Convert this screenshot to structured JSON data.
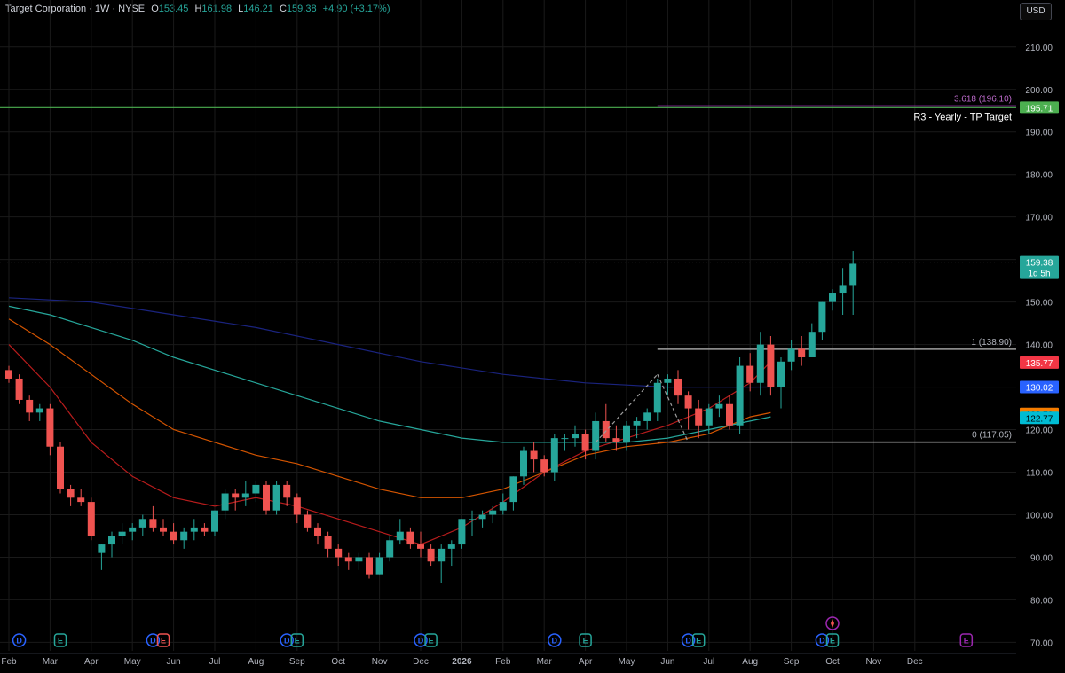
{
  "header": {
    "symbol": "Target Corporation · 1W · NYSE",
    "open_label": "O",
    "open": "153.45",
    "high_label": "H",
    "high": "161.98",
    "low_label": "L",
    "low": "146.21",
    "close_label": "C",
    "close": "159.38",
    "change": "+4.90 (+3.17%)"
  },
  "currency_button": "USD",
  "colors": {
    "up": "#26a69a",
    "down": "#ef5350",
    "background": "#000000",
    "grid": "#1a1a1a",
    "ma_fast": "#b71c1c",
    "ma_mid": "#d35400",
    "ma_slow": "#26a69a",
    "ma_long": "#1a237e"
  },
  "chart_data": {
    "type": "candlestick",
    "title": "Target Corporation · 1W · NYSE",
    "ylim": [
      68,
      216
    ],
    "y_ticks": [
      "70.00",
      "80.00",
      "90.00",
      "100.00",
      "110.00",
      "120.00",
      "130.00",
      "140.00",
      "150.00",
      "160.00",
      "170.00",
      "180.00",
      "190.00",
      "200.00",
      "210.00"
    ],
    "x_ticks": [
      "Feb",
      "Mar",
      "Apr",
      "May",
      "Jun",
      "Jul",
      "Aug",
      "Sep",
      "Oct",
      "Nov",
      "Dec",
      "2026",
      "Feb",
      "Mar",
      "Apr",
      "May",
      "Jun",
      "Jul",
      "Aug",
      "Sep",
      "Oct",
      "Nov",
      "Dec"
    ],
    "x_tick_weeks": [
      0,
      4,
      8,
      12,
      16,
      20,
      24,
      28,
      32,
      36,
      40,
      44,
      48,
      52,
      56,
      60,
      64,
      68,
      72,
      76,
      80,
      84,
      88
    ],
    "bold_tick": "2026",
    "candles": [
      [
        134,
        135,
        131,
        132
      ],
      [
        132,
        133,
        126,
        127
      ],
      [
        127,
        128,
        122,
        124
      ],
      [
        124,
        126,
        122,
        125
      ],
      [
        125,
        126,
        114,
        116
      ],
      [
        116,
        117,
        105,
        106
      ],
      [
        106,
        107,
        102,
        104
      ],
      [
        104,
        106,
        102,
        103
      ],
      [
        103,
        104,
        94,
        95
      ],
      [
        91,
        93,
        87,
        93
      ],
      [
        93,
        96,
        90,
        95
      ],
      [
        95,
        98,
        93,
        96
      ],
      [
        96,
        98,
        94,
        97
      ],
      [
        97,
        100,
        95,
        99
      ],
      [
        99,
        102,
        96,
        97
      ],
      [
        97,
        99,
        95,
        96
      ],
      [
        96,
        98,
        93,
        94
      ],
      [
        94,
        97,
        92,
        96
      ],
      [
        96,
        99,
        94,
        97
      ],
      [
        97,
        98,
        95,
        96
      ],
      [
        96,
        101,
        95,
        101
      ],
      [
        101,
        106,
        99,
        105
      ],
      [
        105,
        106,
        101,
        104
      ],
      [
        104,
        108,
        102,
        105
      ],
      [
        105,
        108,
        103,
        107
      ],
      [
        107,
        108,
        100,
        101
      ],
      [
        101,
        108,
        100,
        107
      ],
      [
        107,
        108,
        102,
        104
      ],
      [
        104,
        105,
        98,
        100
      ],
      [
        100,
        101,
        96,
        97
      ],
      [
        97,
        98,
        93,
        95
      ],
      [
        95,
        96,
        90,
        92
      ],
      [
        92,
        93,
        88,
        90
      ],
      [
        90,
        91,
        87,
        89
      ],
      [
        89,
        91,
        87,
        90
      ],
      [
        90,
        91,
        85,
        86
      ],
      [
        86,
        91,
        86,
        90
      ],
      [
        90,
        95,
        89,
        94
      ],
      [
        94,
        99,
        93,
        96
      ],
      [
        96,
        97,
        92,
        93
      ],
      [
        93,
        96,
        90,
        92
      ],
      [
        92,
        93,
        88,
        89
      ],
      [
        89,
        93,
        84,
        92
      ],
      [
        92,
        94,
        88,
        93
      ],
      [
        93,
        99,
        92,
        99
      ],
      [
        99,
        101,
        95,
        99
      ],
      [
        99,
        101,
        97,
        100
      ],
      [
        100,
        102,
        98,
        101
      ],
      [
        101,
        105,
        100,
        103
      ],
      [
        103,
        109,
        101,
        109
      ],
      [
        109,
        116,
        107,
        115
      ],
      [
        115,
        117,
        110,
        113
      ],
      [
        113,
        114,
        109,
        110
      ],
      [
        110,
        119,
        108,
        118
      ],
      [
        118,
        119,
        115,
        118
      ],
      [
        118,
        121,
        116,
        119
      ],
      [
        119,
        120,
        113,
        115
      ],
      [
        115,
        124,
        113,
        122
      ],
      [
        122,
        126,
        117,
        118
      ],
      [
        118,
        121,
        115,
        117
      ],
      [
        117,
        122,
        115,
        121
      ],
      [
        121,
        123,
        118,
        122
      ],
      [
        122,
        125,
        120,
        124
      ],
      [
        124,
        132,
        122,
        131
      ],
      [
        131,
        133,
        128,
        132
      ],
      [
        132,
        134,
        126,
        128
      ],
      [
        128,
        129,
        120,
        125
      ],
      [
        125,
        127,
        118,
        121
      ],
      [
        121,
        126,
        119,
        125
      ],
      [
        125,
        128,
        123,
        126
      ],
      [
        126,
        128,
        120,
        121
      ],
      [
        121,
        137,
        119,
        135
      ],
      [
        135,
        138,
        129,
        131
      ],
      [
        131,
        143,
        128,
        140
      ],
      [
        140,
        142,
        128,
        130
      ],
      [
        130,
        137,
        125,
        136
      ],
      [
        136,
        141,
        134,
        139
      ],
      [
        139,
        142,
        135,
        137
      ],
      [
        137,
        145,
        137,
        143
      ],
      [
        143,
        150,
        141,
        150
      ],
      [
        150,
        153,
        148,
        152
      ],
      [
        152,
        158,
        147,
        154
      ],
      [
        154,
        162,
        147,
        159
      ]
    ],
    "series": [
      {
        "values": [
          [
            0,
            140
          ],
          [
            4,
            130
          ],
          [
            8,
            117
          ],
          [
            12,
            109
          ],
          [
            16,
            104
          ],
          [
            20,
            102
          ],
          [
            24,
            104
          ],
          [
            28,
            102
          ],
          [
            32,
            99
          ],
          [
            36,
            96
          ],
          [
            40,
            93
          ],
          [
            44,
            97
          ],
          [
            48,
            103
          ],
          [
            52,
            110
          ],
          [
            56,
            115
          ],
          [
            60,
            118
          ],
          [
            64,
            121
          ],
          [
            68,
            125
          ],
          [
            72,
            131
          ],
          [
            74,
            136
          ]
        ]
      },
      {
        "values": [
          [
            0,
            146
          ],
          [
            4,
            140
          ],
          [
            8,
            133
          ],
          [
            12,
            126
          ],
          [
            16,
            120
          ],
          [
            20,
            117
          ],
          [
            24,
            114
          ],
          [
            28,
            112
          ],
          [
            32,
            109
          ],
          [
            36,
            106
          ],
          [
            40,
            104
          ],
          [
            44,
            104
          ],
          [
            48,
            106
          ],
          [
            52,
            110
          ],
          [
            56,
            114
          ],
          [
            60,
            116
          ],
          [
            64,
            117
          ],
          [
            68,
            119
          ],
          [
            72,
            123
          ],
          [
            74,
            124
          ]
        ]
      },
      {
        "values": [
          [
            0,
            149
          ],
          [
            4,
            147
          ],
          [
            8,
            144
          ],
          [
            12,
            141
          ],
          [
            16,
            137
          ],
          [
            20,
            134
          ],
          [
            24,
            131
          ],
          [
            28,
            128
          ],
          [
            32,
            125
          ],
          [
            36,
            122
          ],
          [
            40,
            120
          ],
          [
            44,
            118
          ],
          [
            48,
            117
          ],
          [
            52,
            117
          ],
          [
            56,
            117
          ],
          [
            60,
            117
          ],
          [
            64,
            118
          ],
          [
            68,
            120
          ],
          [
            72,
            122
          ],
          [
            74,
            123
          ]
        ]
      },
      {
        "values": [
          [
            0,
            151
          ],
          [
            8,
            150
          ],
          [
            16,
            147
          ],
          [
            24,
            144
          ],
          [
            32,
            140
          ],
          [
            40,
            136
          ],
          [
            48,
            133
          ],
          [
            56,
            131
          ],
          [
            60,
            130.5
          ],
          [
            64,
            130
          ],
          [
            68,
            130
          ],
          [
            72,
            130
          ],
          [
            74,
            130.02
          ]
        ]
      }
    ],
    "horizontal_lines": [
      {
        "value": 195.71,
        "label": "",
        "color": "#4caf50",
        "full": true
      },
      {
        "value": 196.1,
        "label": "3.618 (196.10)",
        "color": "#9c27b0",
        "full": false
      },
      {
        "value": 138.9,
        "label": "1 (138.90)",
        "color": "#9e9e9e",
        "full": false
      },
      {
        "value": 117.05,
        "label": "0 (117.05)",
        "color": "#9e9e9e",
        "full": false
      }
    ],
    "annotation": "R3 - Yearly - TP Target",
    "last_price": {
      "value": 159.38,
      "label": "159.38",
      "countdown": "1d 5h"
    },
    "price_labels": [
      {
        "value": 195.71,
        "label": "195.71",
        "color": "#4caf50"
      },
      {
        "value": 135.77,
        "label": "135.77",
        "color": "#f23645"
      },
      {
        "value": 130.02,
        "label": "130.02",
        "color": "#2962ff"
      },
      {
        "value": 123.7,
        "label": "123.70",
        "color": "#f57c00"
      },
      {
        "value": 122.77,
        "label": "122.77",
        "color": "#00bcd4"
      }
    ],
    "events": [
      {
        "week": 1,
        "label": "D",
        "kind": "dividend"
      },
      {
        "week": 5,
        "label": "E",
        "kind": "earnings"
      },
      {
        "week": 14,
        "label": "D",
        "kind": "dividend"
      },
      {
        "week": 15,
        "label": "E",
        "kind": "earnings-neg"
      },
      {
        "week": 27,
        "label": "D",
        "kind": "dividend"
      },
      {
        "week": 28,
        "label": "E",
        "kind": "earnings"
      },
      {
        "week": 40,
        "label": "D",
        "kind": "dividend"
      },
      {
        "week": 41,
        "label": "E",
        "kind": "earnings"
      },
      {
        "week": 53,
        "label": "D",
        "kind": "dividend"
      },
      {
        "week": 56,
        "label": "E",
        "kind": "earnings"
      },
      {
        "week": 66,
        "label": "D",
        "kind": "dividend"
      },
      {
        "week": 67,
        "label": "E",
        "kind": "earnings"
      },
      {
        "week": 79,
        "label": "D",
        "kind": "dividend"
      },
      {
        "week": 80,
        "label": "E",
        "kind": "earnings"
      },
      {
        "week": 93,
        "label": "E",
        "kind": "earnings-future"
      }
    ]
  }
}
